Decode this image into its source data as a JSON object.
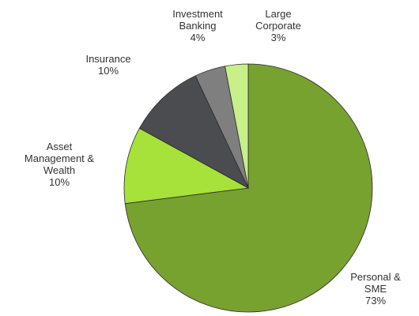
{
  "chart_data": {
    "type": "pie",
    "categories": [
      "Personal & SME",
      "Asset Management & Wealth",
      "Insurance",
      "Investment Banking",
      "Large Corporate"
    ],
    "values": [
      73,
      10,
      10,
      4,
      3
    ],
    "value_labels": [
      "73%",
      "10%",
      "10%",
      "4%",
      "3%"
    ],
    "colors": [
      "#77a22f",
      "#a6e23a",
      "#4a4c50",
      "#7f7f7f",
      "#c8ef8a"
    ]
  }
}
